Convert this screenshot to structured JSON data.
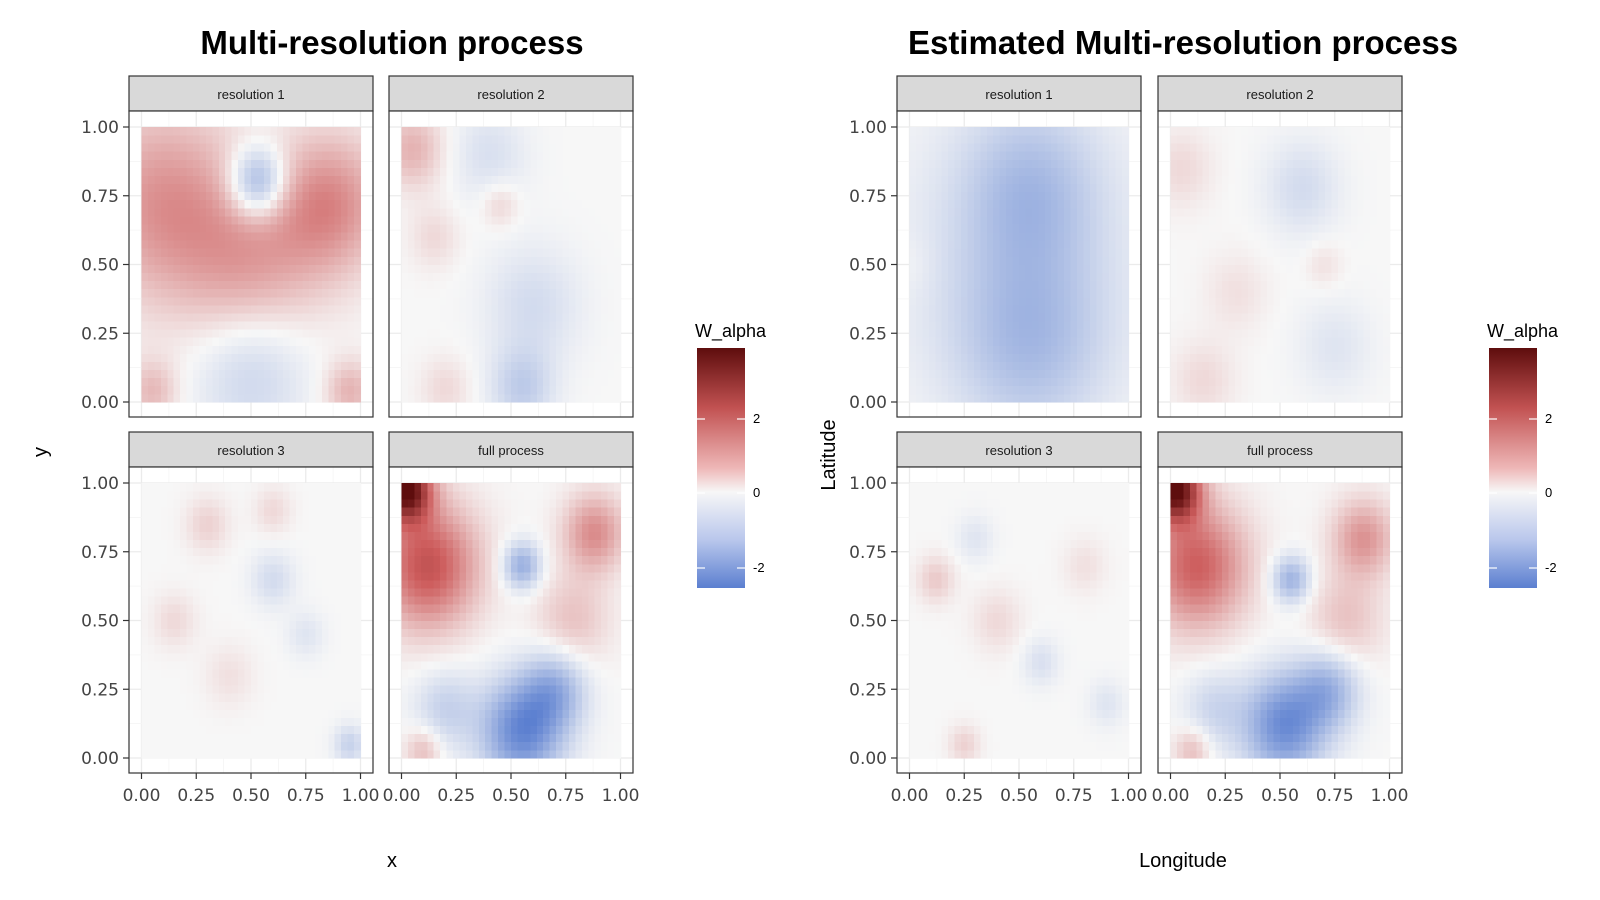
{
  "chart_data": [
    {
      "type": "heatmap",
      "title": "Multi-resolution process",
      "xlabel": "x",
      "ylabel": "y",
      "xlim": [
        0,
        1
      ],
      "ylim": [
        0,
        1
      ],
      "x_ticks": [
        "0.00",
        "0.25",
        "0.50",
        "0.75",
        "1.00"
      ],
      "y_ticks": [
        "0.00",
        "0.25",
        "0.50",
        "0.75",
        "1.00"
      ],
      "panel_grid": "on",
      "legend": {
        "title": "W_alpha",
        "position": "right",
        "ticks": [
          "2",
          "0",
          "-2"
        ],
        "colors": {
          "low": "#5b7fd0",
          "mid": "#f7f7f7",
          "high": "#5e0d0d"
        },
        "range": [
          -2.6,
          3.7
        ]
      },
      "panels": [
        {
          "label": "resolution 1",
          "features": [
            {
              "x": 0.1,
              "y": 0.72,
              "value": 1.3,
              "spread": 0.25
            },
            {
              "x": 0.86,
              "y": 0.72,
              "value": 1.4,
              "spread": 0.18
            },
            {
              "x": 0.5,
              "y": 0.5,
              "value": 1.0,
              "spread": 0.22
            },
            {
              "x": 0.53,
              "y": 0.8,
              "value": -1.9,
              "spread": 0.09
            },
            {
              "x": 0.5,
              "y": 0.12,
              "value": -0.8,
              "spread": 0.18
            },
            {
              "x": 0.05,
              "y": 0.04,
              "value": 0.8,
              "spread": 0.08
            },
            {
              "x": 0.95,
              "y": 0.04,
              "value": 0.9,
              "spread": 0.08
            }
          ]
        },
        {
          "label": "resolution 2",
          "features": [
            {
              "x": 0.05,
              "y": 0.92,
              "value": 0.9,
              "spread": 0.1
            },
            {
              "x": 0.45,
              "y": 0.72,
              "value": 0.5,
              "spread": 0.06
            },
            {
              "x": 0.15,
              "y": 0.6,
              "value": 0.4,
              "spread": 0.08
            },
            {
              "x": 0.4,
              "y": 0.9,
              "value": -0.5,
              "spread": 0.12
            },
            {
              "x": 0.6,
              "y": 0.35,
              "value": -0.6,
              "spread": 0.15
            },
            {
              "x": 0.55,
              "y": 0.05,
              "value": -0.9,
              "spread": 0.1
            },
            {
              "x": 0.2,
              "y": 0.05,
              "value": 0.4,
              "spread": 0.08
            }
          ]
        },
        {
          "label": "resolution 3",
          "features": [
            {
              "x": 0.3,
              "y": 0.85,
              "value": 0.5,
              "spread": 0.07
            },
            {
              "x": 0.15,
              "y": 0.5,
              "value": 0.4,
              "spread": 0.07
            },
            {
              "x": 0.6,
              "y": 0.65,
              "value": -0.6,
              "spread": 0.07
            },
            {
              "x": 0.75,
              "y": 0.45,
              "value": -0.4,
              "spread": 0.06
            },
            {
              "x": 0.95,
              "y": 0.05,
              "value": -0.8,
              "spread": 0.05
            },
            {
              "x": 0.4,
              "y": 0.3,
              "value": 0.3,
              "spread": 0.08
            },
            {
              "x": 0.6,
              "y": 0.9,
              "value": 0.4,
              "spread": 0.06
            }
          ]
        },
        {
          "label": "full process",
          "features": [
            {
              "x": 0.02,
              "y": 0.98,
              "value": 3.6,
              "spread": 0.08
            },
            {
              "x": 0.12,
              "y": 0.7,
              "value": 2.2,
              "spread": 0.16
            },
            {
              "x": 0.55,
              "y": 0.7,
              "value": -1.6,
              "spread": 0.06
            },
            {
              "x": 0.55,
              "y": 0.1,
              "value": -2.4,
              "spread": 0.13
            },
            {
              "x": 0.7,
              "y": 0.25,
              "value": -1.4,
              "spread": 0.1
            },
            {
              "x": 0.2,
              "y": 0.18,
              "value": -0.8,
              "spread": 0.1
            },
            {
              "x": 0.88,
              "y": 0.82,
              "value": 1.4,
              "spread": 0.1
            },
            {
              "x": 0.78,
              "y": 0.5,
              "value": 0.7,
              "spread": 0.12
            },
            {
              "x": 0.1,
              "y": 0.03,
              "value": 0.8,
              "spread": 0.06
            }
          ]
        }
      ]
    },
    {
      "type": "heatmap",
      "title": "Estimated Multi-resolution process",
      "xlabel": "Longitude",
      "ylabel": "Latitude",
      "xlim": [
        0,
        1
      ],
      "ylim": [
        0,
        1
      ],
      "x_ticks": [
        "0.00",
        "0.25",
        "0.50",
        "0.75",
        "1.00"
      ],
      "y_ticks": [
        "0.00",
        "0.25",
        "0.50",
        "0.75",
        "1.00"
      ],
      "panel_grid": "on",
      "legend": {
        "title": "W_alpha",
        "position": "right",
        "ticks": [
          "2",
          "0",
          "-2"
        ],
        "colors": {
          "low": "#5b7fd0",
          "mid": "#f7f7f7",
          "high": "#5e0d0d"
        },
        "range": [
          -2.6,
          3.7
        ]
      },
      "panels": [
        {
          "label": "resolution 1",
          "features": [
            {
              "x": 0.55,
              "y": 0.78,
              "value": -1.0,
              "spread": 0.22
            },
            {
              "x": 0.55,
              "y": 0.22,
              "value": -1.0,
              "spread": 0.24
            },
            {
              "x": 0.5,
              "y": 0.5,
              "value": -0.5,
              "spread": 0.4
            },
            {
              "x": 0.0,
              "y": 0.5,
              "value": 0.15,
              "spread": 0.08
            }
          ]
        },
        {
          "label": "resolution 2",
          "features": [
            {
              "x": 0.6,
              "y": 0.78,
              "value": -0.6,
              "spread": 0.12
            },
            {
              "x": 0.05,
              "y": 0.85,
              "value": 0.4,
              "spread": 0.1
            },
            {
              "x": 0.3,
              "y": 0.4,
              "value": 0.3,
              "spread": 0.1
            },
            {
              "x": 0.15,
              "y": 0.08,
              "value": 0.4,
              "spread": 0.1
            },
            {
              "x": 0.7,
              "y": 0.5,
              "value": 0.3,
              "spread": 0.06
            },
            {
              "x": 0.75,
              "y": 0.2,
              "value": -0.4,
              "spread": 0.12
            }
          ]
        },
        {
          "label": "resolution 3",
          "features": [
            {
              "x": 0.12,
              "y": 0.65,
              "value": 0.6,
              "spread": 0.06
            },
            {
              "x": 0.4,
              "y": 0.5,
              "value": 0.4,
              "spread": 0.08
            },
            {
              "x": 0.3,
              "y": 0.8,
              "value": -0.4,
              "spread": 0.06
            },
            {
              "x": 0.6,
              "y": 0.35,
              "value": -0.5,
              "spread": 0.06
            },
            {
              "x": 0.25,
              "y": 0.05,
              "value": 0.5,
              "spread": 0.05
            },
            {
              "x": 0.8,
              "y": 0.7,
              "value": 0.3,
              "spread": 0.07
            },
            {
              "x": 0.9,
              "y": 0.2,
              "value": -0.4,
              "spread": 0.06
            }
          ]
        },
        {
          "label": "full process",
          "features": [
            {
              "x": 0.02,
              "y": 0.98,
              "value": 3.6,
              "spread": 0.08
            },
            {
              "x": 0.12,
              "y": 0.7,
              "value": 2.0,
              "spread": 0.16
            },
            {
              "x": 0.55,
              "y": 0.65,
              "value": -1.5,
              "spread": 0.06
            },
            {
              "x": 0.52,
              "y": 0.12,
              "value": -2.3,
              "spread": 0.13
            },
            {
              "x": 0.72,
              "y": 0.25,
              "value": -1.4,
              "spread": 0.1
            },
            {
              "x": 0.2,
              "y": 0.18,
              "value": -0.7,
              "spread": 0.1
            },
            {
              "x": 0.88,
              "y": 0.8,
              "value": 1.3,
              "spread": 0.1
            },
            {
              "x": 0.8,
              "y": 0.5,
              "value": 0.7,
              "spread": 0.12
            },
            {
              "x": 0.1,
              "y": 0.03,
              "value": 0.8,
              "spread": 0.06
            }
          ]
        }
      ]
    }
  ]
}
